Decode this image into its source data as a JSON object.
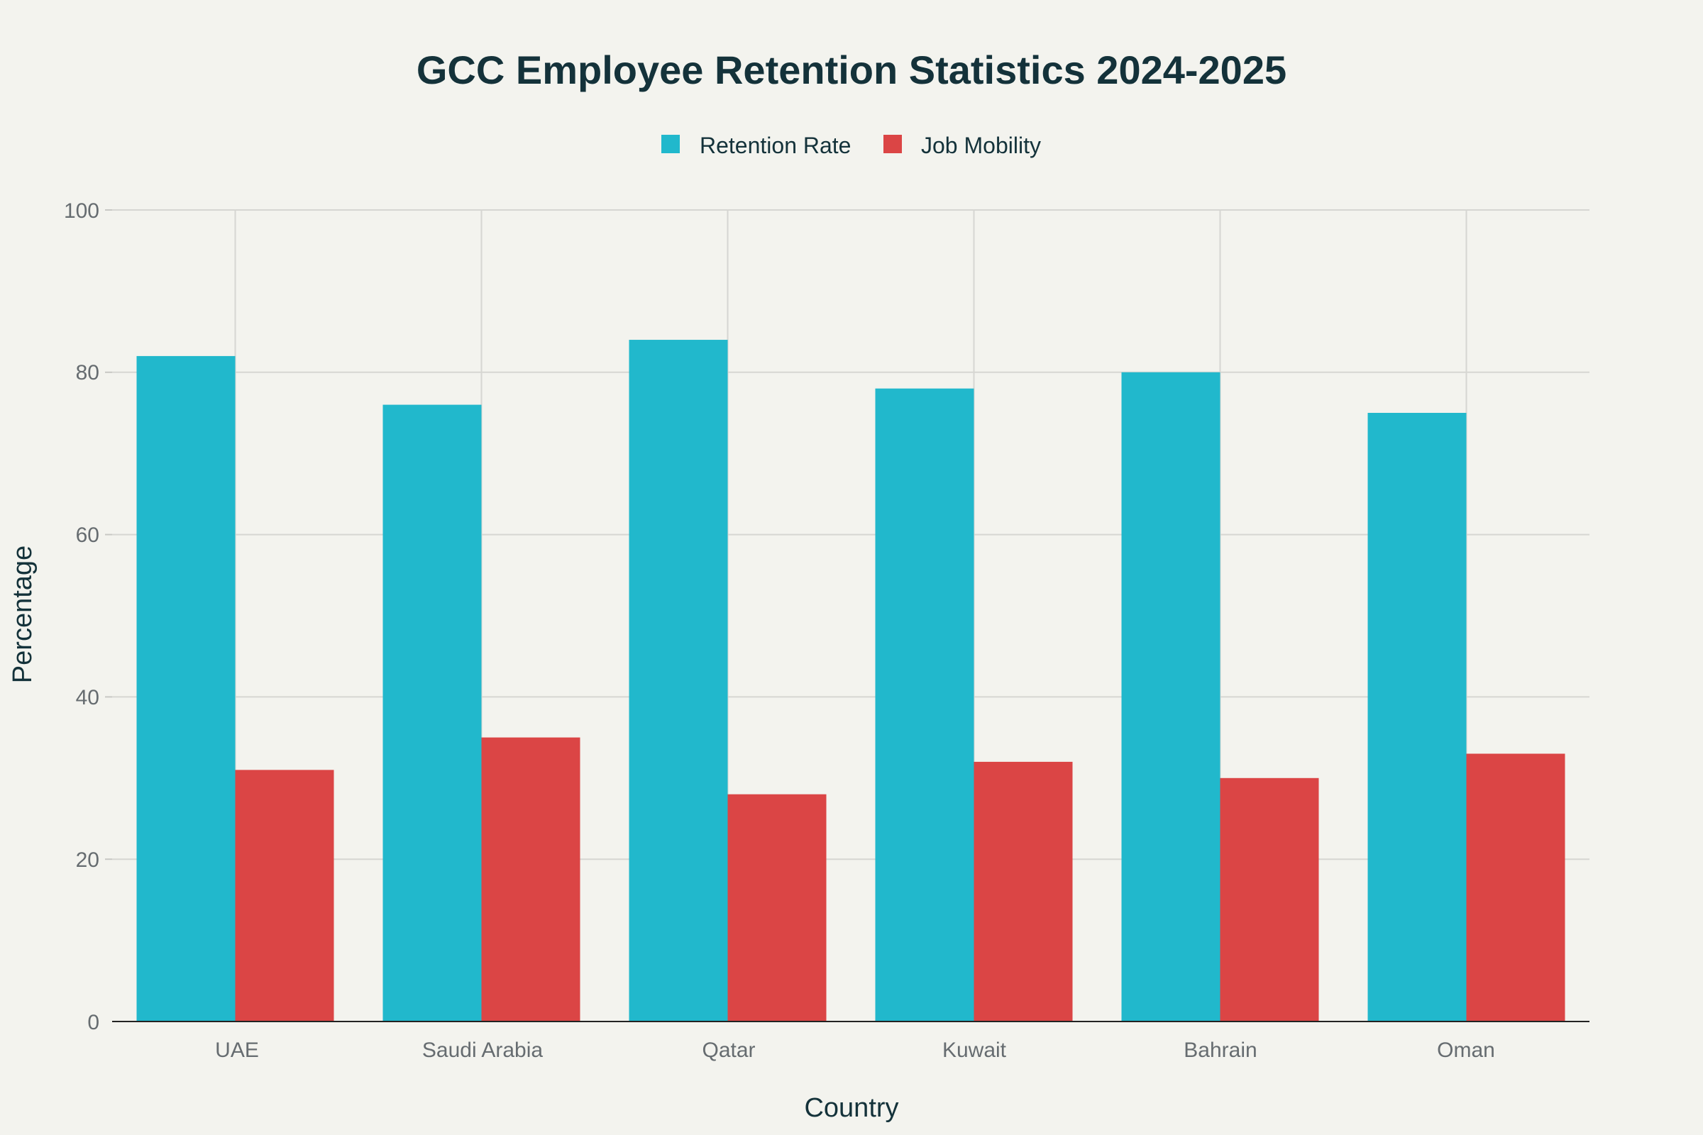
{
  "chart_data": {
    "type": "bar",
    "title": "GCC Employee Retention Statistics 2024-2025",
    "xlabel": "Country",
    "ylabel": "Percentage",
    "categories": [
      "UAE",
      "Saudi Arabia",
      "Qatar",
      "Kuwait",
      "Bahrain",
      "Oman"
    ],
    "series": [
      {
        "name": "Retention Rate",
        "color": "#21b8cc",
        "values": [
          82,
          76,
          84,
          78,
          80,
          75
        ]
      },
      {
        "name": "Job Mobility",
        "color": "#db4545",
        "values": [
          31,
          35,
          28,
          32,
          30,
          33
        ]
      }
    ],
    "ylim": [
      0,
      100
    ],
    "yticks": [
      "0",
      "20",
      "40",
      "60",
      "80",
      "100"
    ],
    "grid": true,
    "legend_position": "top-center"
  }
}
